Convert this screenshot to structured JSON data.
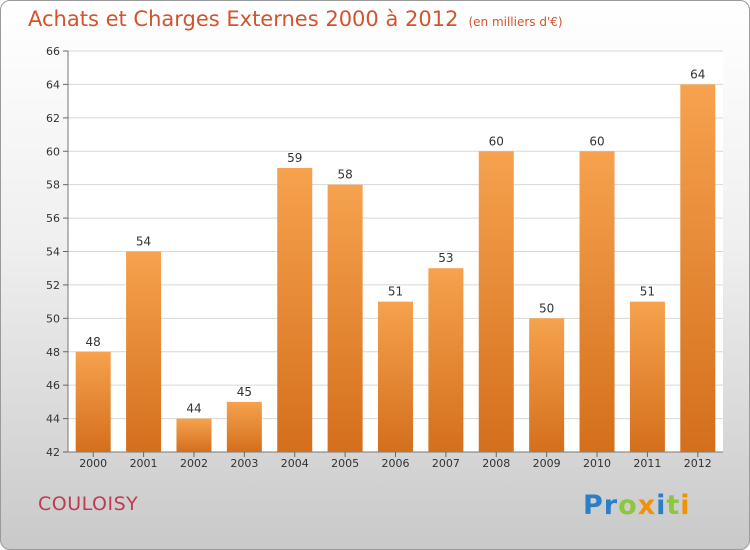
{
  "title": "Achats et Charges Externes 2000 à 2012",
  "unit_label": "(en milliers d'€)",
  "town": "COULOISY",
  "logo": {
    "letters": [
      "P",
      "r",
      "o",
      "x",
      "i",
      "t",
      "i"
    ],
    "colors": [
      "#2a7fc9",
      "#2a7fc9",
      "#8dc63f",
      "#f39200",
      "#2a7fc9",
      "#8dc63f",
      "#f39200"
    ]
  },
  "chart_data": {
    "type": "bar",
    "categories": [
      "2000",
      "2001",
      "2002",
      "2003",
      "2004",
      "2005",
      "2006",
      "2007",
      "2008",
      "2009",
      "2010",
      "2011",
      "2012"
    ],
    "values": [
      48,
      54,
      44,
      45,
      59,
      58,
      51,
      53,
      60,
      50,
      60,
      51,
      64
    ],
    "ylim": [
      42,
      66
    ],
    "yticks": [
      42,
      44,
      46,
      48,
      50,
      52,
      54,
      56,
      58,
      60,
      62,
      64,
      66
    ],
    "grid": true,
    "bar_color_top": "#f6a24e",
    "bar_color_bottom": "#d46f1c",
    "grid_color": "#d7d7d7"
  }
}
